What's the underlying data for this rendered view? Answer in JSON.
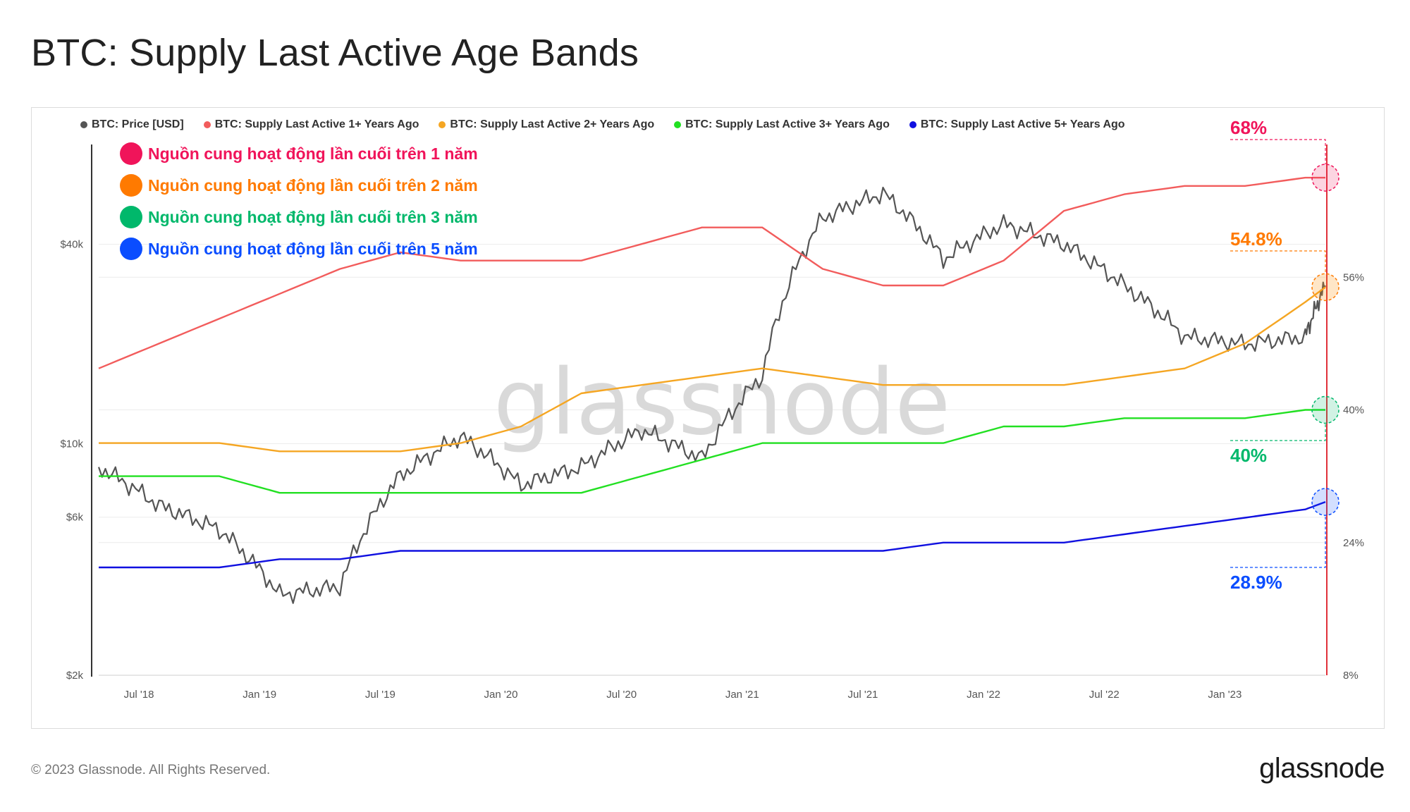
{
  "page": {
    "title": "BTC: Supply Last Active Age Bands"
  },
  "legend": [
    {
      "label": "BTC: Price [USD]",
      "color": "#555555"
    },
    {
      "label": "BTC: Supply Last Active 1+ Years Ago",
      "color": "#f25c5c"
    },
    {
      "label": "BTC: Supply Last Active 2+ Years Ago",
      "color": "#f5a623"
    },
    {
      "label": "BTC: Supply Last Active 3+ Years Ago",
      "color": "#22e022"
    },
    {
      "label": "BTC: Supply Last Active 5+ Years Ago",
      "color": "#1010e0"
    }
  ],
  "annotations": [
    {
      "text": "Nguồn cung hoạt động lần cuối trên 1 năm",
      "color": "#f0145a"
    },
    {
      "text": "Nguồn cung hoạt động lần cuối trên 2 năm",
      "color": "#ff7a00"
    },
    {
      "text": "Nguồn cung hoạt động lần cuối trên 3 năm",
      "color": "#00b86b"
    },
    {
      "text": "Nguồn cung hoạt động lần cuối trên 5 năm",
      "color": "#0a4dff"
    }
  ],
  "callouts": [
    {
      "text": "68%",
      "color": "#f0145a"
    },
    {
      "text": "54.8%",
      "color": "#ff7a00"
    },
    {
      "text": "40%",
      "color": "#00b86b"
    },
    {
      "text": "28.9%",
      "color": "#0a4dff"
    }
  ],
  "watermark": "glassnode",
  "footer": {
    "copyright": "© 2023 Glassnode. All Rights Reserved.",
    "brand": "glassnode"
  },
  "chart_data": {
    "type": "line",
    "title": "BTC: Supply Last Active Age Bands",
    "x_ticks": [
      "Jul '18",
      "Jan '19",
      "Jul '19",
      "Jan '20",
      "Jul '20",
      "Jan '21",
      "Jul '21",
      "Jan '22",
      "Jul '22",
      "Jan '23"
    ],
    "y_left_ticks": [
      "$40k",
      "$10k",
      "$6k",
      "$2k"
    ],
    "y_right_ticks": [
      "56%",
      "40%",
      "24%",
      "8%"
    ],
    "y_left_scale": "log",
    "y_left_range": [
      2000,
      80000
    ],
    "y_right_range": [
      8,
      72
    ],
    "grid": true,
    "legend_position": "top",
    "x": [
      "2018-05",
      "2018-08",
      "2018-11",
      "2019-02",
      "2019-05",
      "2019-08",
      "2019-11",
      "2020-02",
      "2020-05",
      "2020-08",
      "2020-11",
      "2021-02",
      "2021-05",
      "2021-08",
      "2021-11",
      "2022-02",
      "2022-05",
      "2022-08",
      "2022-11",
      "2023-02",
      "2023-05",
      "2023-06"
    ],
    "series": [
      {
        "name": "BTC: Price [USD]",
        "axis": "left",
        "color": "#555555",
        "values": [
          8500,
          6500,
          5500,
          3500,
          3700,
          8000,
          10500,
          7500,
          8500,
          11000,
          9000,
          16000,
          48000,
          57000,
          36000,
          46000,
          40000,
          30000,
          21000,
          20000,
          21000,
          30000
        ]
      },
      {
        "name": "BTC: Supply Last Active 1+ Years Ago",
        "axis": "right",
        "color": "#f25c5c",
        "values": [
          45,
          48,
          51,
          54,
          57,
          59,
          58,
          58,
          58,
          60,
          62,
          62,
          57,
          55,
          55,
          58,
          64,
          66,
          67,
          67,
          68,
          68
        ]
      },
      {
        "name": "BTC: Supply Last Active 2+ Years Ago",
        "axis": "right",
        "color": "#f5a623",
        "values": [
          36,
          36,
          36,
          35,
          35,
          35,
          36,
          38,
          42,
          43,
          44,
          45,
          44,
          43,
          43,
          43,
          43,
          44,
          45,
          48,
          53,
          54.8
        ]
      },
      {
        "name": "BTC: Supply Last Active 3+ Years Ago",
        "axis": "right",
        "color": "#22e022",
        "values": [
          32,
          32,
          32,
          30,
          30,
          30,
          30,
          30,
          30,
          32,
          34,
          36,
          36,
          36,
          36,
          38,
          38,
          39,
          39,
          39,
          40,
          40
        ]
      },
      {
        "name": "BTC: Supply Last Active 5+ Years Ago",
        "axis": "right",
        "color": "#1010e0",
        "values": [
          21,
          21,
          21,
          22,
          22,
          23,
          23,
          23,
          23,
          23,
          23,
          23,
          23,
          23,
          24,
          24,
          24,
          25,
          26,
          27,
          28,
          28.9
        ]
      }
    ]
  }
}
